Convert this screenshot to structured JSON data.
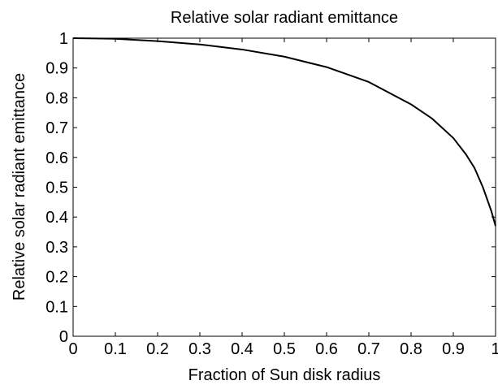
{
  "chart_data": {
    "type": "line",
    "title": "Relative solar radiant emittance",
    "xlabel": "Fraction of Sun disk radius",
    "ylabel": "Relative solar radiant emittance",
    "x": [
      0,
      0.1,
      0.2,
      0.3,
      0.4,
      0.5,
      0.6,
      0.7,
      0.8,
      0.85,
      0.9,
      0.93,
      0.95,
      0.97,
      0.98,
      0.99,
      1.0
    ],
    "series": [
      {
        "name": "Relative solar radiant emittance",
        "color": "#000000",
        "values": [
          1.0,
          0.998,
          0.99,
          0.979,
          0.962,
          0.938,
          0.903,
          0.853,
          0.778,
          0.73,
          0.665,
          0.61,
          0.565,
          0.5,
          0.46,
          0.42,
          0.37
        ]
      }
    ],
    "xlim": [
      0,
      1
    ],
    "ylim": [
      0,
      1
    ],
    "xticks": [
      0,
      0.1,
      0.2,
      0.3,
      0.4,
      0.5,
      0.6,
      0.7,
      0.8,
      0.9,
      1
    ],
    "yticks": [
      0,
      0.1,
      0.2,
      0.3,
      0.4,
      0.5,
      0.6,
      0.7,
      0.8,
      0.9,
      1
    ],
    "grid": false
  }
}
